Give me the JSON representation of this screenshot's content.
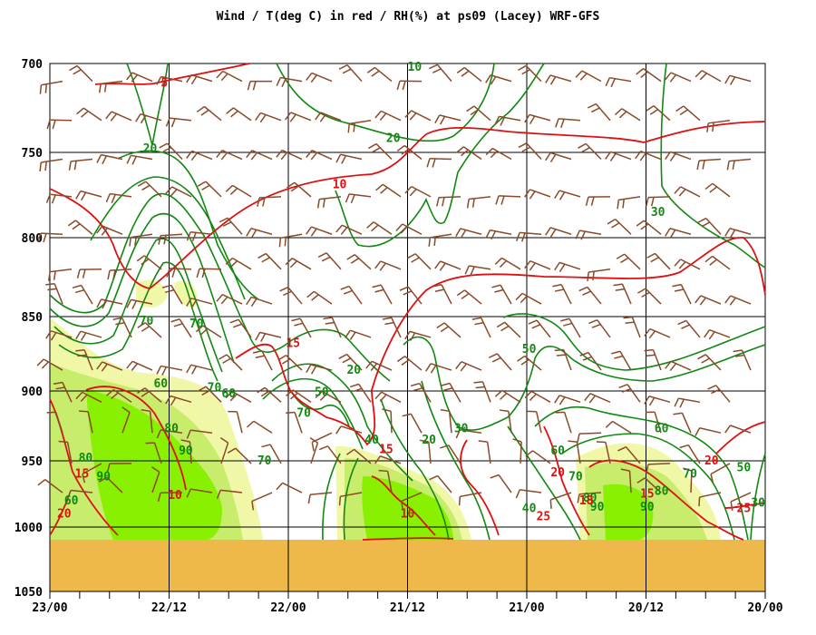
{
  "chart_data": {
    "type": "area",
    "title": "Wind / T(deg C) in red / RH(%) at ps09 (Lacey)  WRF-GFS",
    "xlabel": "",
    "ylabel": "",
    "x_ticks": [
      "23/00",
      "22/12",
      "22/00",
      "21/12",
      "21/00",
      "20/12",
      "20/00"
    ],
    "y_ticks": [
      700,
      750,
      800,
      850,
      900,
      950,
      1000,
      1050
    ],
    "ylim": [
      1050,
      700
    ],
    "grid": true,
    "colors": {
      "rh": "#118811",
      "temp": "#dd1111",
      "wind": "#8a4a2a",
      "rh70_fill": "#f0f8a8",
      "rh80_fill": "#c8ec6c",
      "rh90_fill": "#88f000",
      "terrain": "#eeb84a"
    },
    "terrain_top_hpa": 1010,
    "rh_labels": [
      {
        "text": "10",
        "x": 0.51,
        "p": 702
      },
      {
        "text": "20",
        "x": 0.14,
        "p": 748
      },
      {
        "text": "20",
        "x": 0.48,
        "p": 742
      },
      {
        "text": "30",
        "x": 0.85,
        "p": 785
      },
      {
        "text": "70",
        "x": 0.135,
        "p": 853
      },
      {
        "text": "70",
        "x": 0.205,
        "p": 855
      },
      {
        "text": "60",
        "x": 0.155,
        "p": 895
      },
      {
        "text": "70",
        "x": 0.23,
        "p": 898
      },
      {
        "text": "60",
        "x": 0.25,
        "p": 902
      },
      {
        "text": "50",
        "x": 0.38,
        "p": 901
      },
      {
        "text": "20",
        "x": 0.425,
        "p": 886
      },
      {
        "text": "50",
        "x": 0.67,
        "p": 872
      },
      {
        "text": "70",
        "x": 0.355,
        "p": 916
      },
      {
        "text": "80",
        "x": 0.17,
        "p": 927
      },
      {
        "text": "40",
        "x": 0.45,
        "p": 935
      },
      {
        "text": "20",
        "x": 0.53,
        "p": 935
      },
      {
        "text": "30",
        "x": 0.575,
        "p": 927
      },
      {
        "text": "60",
        "x": 0.855,
        "p": 927
      },
      {
        "text": "90",
        "x": 0.19,
        "p": 943
      },
      {
        "text": "80",
        "x": 0.05,
        "p": 948
      },
      {
        "text": "60",
        "x": 0.71,
        "p": 943
      },
      {
        "text": "70",
        "x": 0.3,
        "p": 950
      },
      {
        "text": "90",
        "x": 0.075,
        "p": 962
      },
      {
        "text": "70",
        "x": 0.735,
        "p": 962
      },
      {
        "text": "50",
        "x": 0.97,
        "p": 955
      },
      {
        "text": "70",
        "x": 0.895,
        "p": 960
      },
      {
        "text": "80",
        "x": 0.855,
        "p": 973
      },
      {
        "text": "80",
        "x": 0.755,
        "p": 978
      },
      {
        "text": "90",
        "x": 0.765,
        "p": 985
      },
      {
        "text": "90",
        "x": 0.835,
        "p": 985
      },
      {
        "text": "60",
        "x": 0.03,
        "p": 980
      },
      {
        "text": "40",
        "x": 0.67,
        "p": 986
      },
      {
        "text": "30",
        "x": 0.99,
        "p": 982
      }
    ],
    "t_labels": [
      {
        "text": "5",
        "x": 0.16,
        "p": 711
      },
      {
        "text": "10",
        "x": 0.405,
        "p": 769
      },
      {
        "text": "15",
        "x": 0.34,
        "p": 868
      },
      {
        "text": "15",
        "x": 0.47,
        "p": 942
      },
      {
        "text": "10",
        "x": 0.175,
        "p": 976
      },
      {
        "text": "10",
        "x": 0.5,
        "p": 990
      },
      {
        "text": "15",
        "x": 0.045,
        "p": 960
      },
      {
        "text": "20",
        "x": 0.02,
        "p": 990
      },
      {
        "text": "25",
        "x": 0.69,
        "p": 992
      },
      {
        "text": "20",
        "x": 0.71,
        "p": 959
      },
      {
        "text": "18",
        "x": 0.75,
        "p": 980
      },
      {
        "text": "15",
        "x": 0.835,
        "p": 975
      },
      {
        "text": "20",
        "x": 0.925,
        "p": 950
      },
      {
        "text": "25",
        "x": 0.97,
        "p": 986
      }
    ]
  }
}
